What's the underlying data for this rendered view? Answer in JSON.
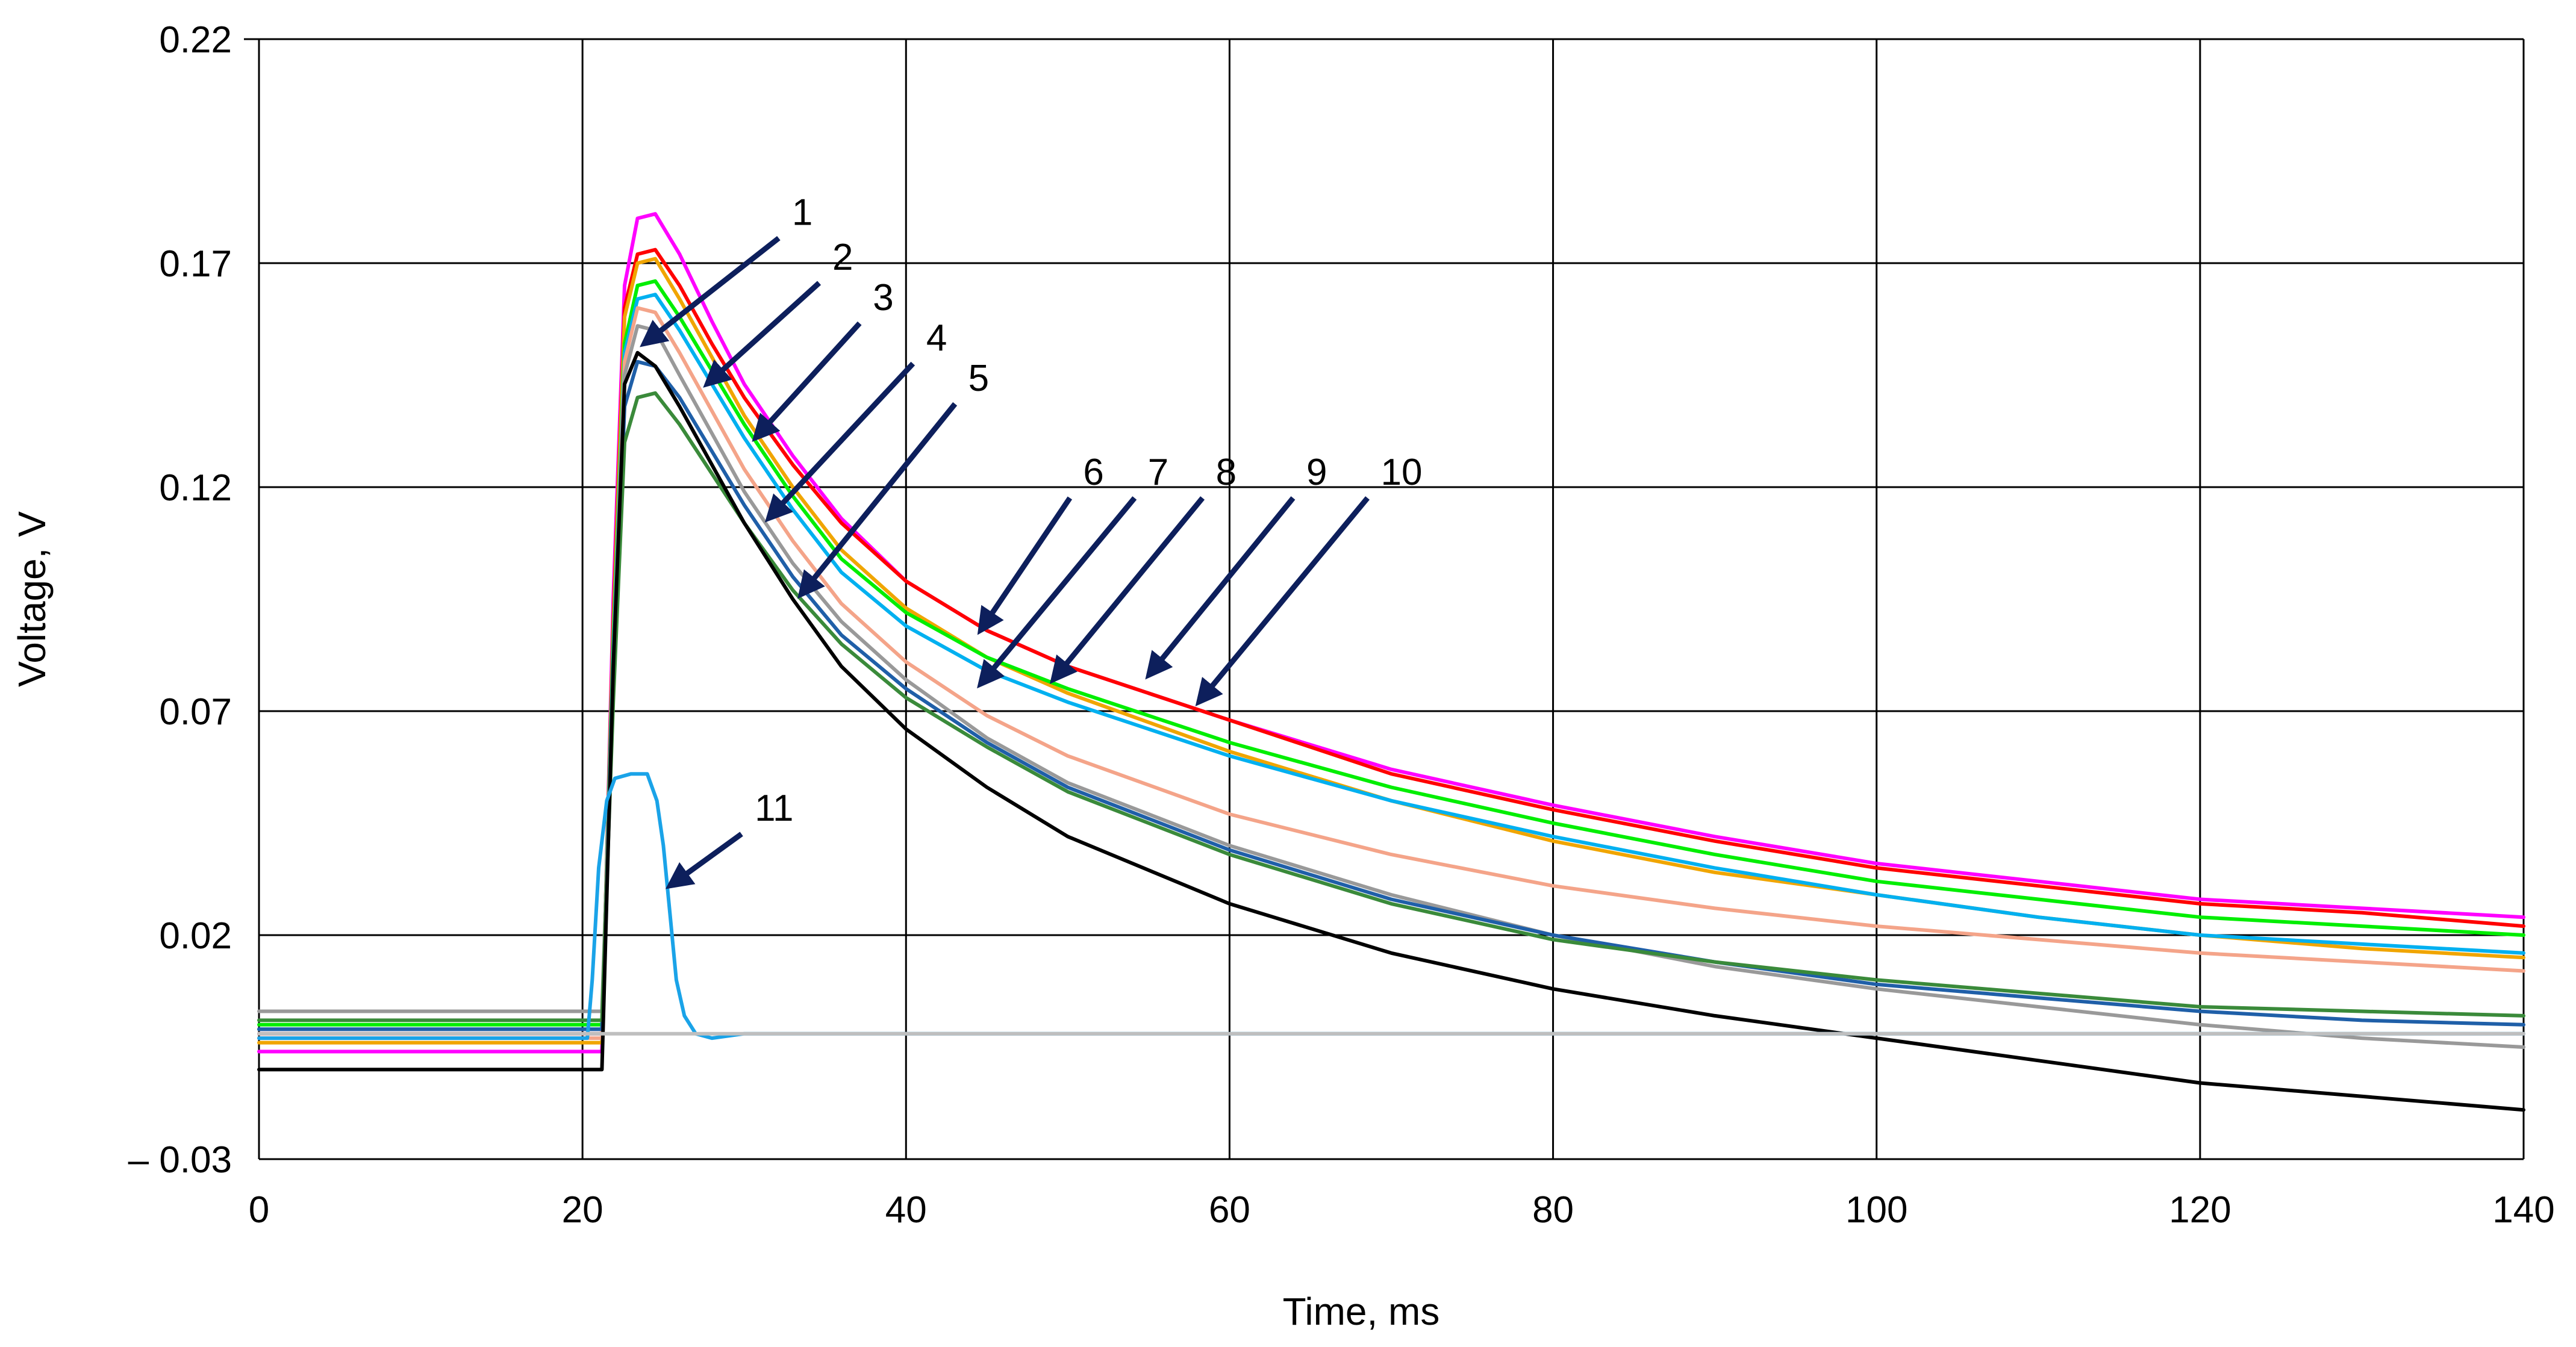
{
  "chart_data": {
    "type": "line",
    "title": "",
    "xlabel": "Time, ms",
    "ylabel": "Voltage, V",
    "xlim": [
      0,
      140
    ],
    "ylim": [
      -0.03,
      0.22
    ],
    "x_ticks": [
      0,
      20,
      40,
      60,
      80,
      100,
      120,
      140
    ],
    "x_tick_labels": [
      "0",
      "20",
      "40",
      "60",
      "80",
      "100",
      "120",
      "140"
    ],
    "y_ticks": [
      -0.03,
      0.02,
      0.07,
      0.12,
      0.17,
      0.22
    ],
    "y_tick_labels": [
      "– 0.03",
      "0.02",
      "0.07",
      "0.12",
      "0.17",
      "0.22"
    ],
    "grid": true,
    "series": [
      {
        "name": "magenta",
        "color": "#ff00ff",
        "x": [
          0,
          21.2,
          21.9,
          22.6,
          23.4,
          24.5,
          26,
          28,
          30,
          33,
          36,
          40,
          45,
          50,
          60,
          70,
          80,
          90,
          100,
          110,
          120,
          130,
          140
        ],
        "y": [
          -0.006,
          -0.006,
          0.095,
          0.165,
          0.18,
          0.181,
          0.172,
          0.157,
          0.143,
          0.127,
          0.113,
          0.099,
          0.088,
          0.08,
          0.068,
          0.057,
          0.049,
          0.042,
          0.036,
          0.032,
          0.028,
          0.026,
          0.024
        ]
      },
      {
        "name": "red",
        "color": "#ff0000",
        "x": [
          0,
          21.2,
          21.9,
          22.6,
          23.4,
          24.5,
          26,
          28,
          30,
          33,
          36,
          40,
          45,
          50,
          60,
          70,
          80,
          90,
          100,
          110,
          120,
          130,
          140
        ],
        "y": [
          -0.002,
          -0.002,
          0.09,
          0.16,
          0.172,
          0.173,
          0.165,
          0.152,
          0.14,
          0.125,
          0.112,
          0.099,
          0.088,
          0.08,
          0.068,
          0.056,
          0.048,
          0.041,
          0.035,
          0.031,
          0.027,
          0.025,
          0.022
        ]
      },
      {
        "name": "orange",
        "color": "#f0a500",
        "x": [
          0,
          21.2,
          21.9,
          22.6,
          23.4,
          24.5,
          26,
          28,
          30,
          33,
          36,
          40,
          45,
          50,
          60,
          70,
          80,
          90,
          100,
          110,
          120,
          130,
          140
        ],
        "y": [
          -0.004,
          -0.004,
          0.088,
          0.158,
          0.17,
          0.171,
          0.162,
          0.149,
          0.136,
          0.12,
          0.106,
          0.093,
          0.082,
          0.074,
          0.061,
          0.05,
          0.041,
          0.034,
          0.029,
          0.024,
          0.02,
          0.017,
          0.015
        ]
      },
      {
        "name": "green",
        "color": "#00ee00",
        "x": [
          0,
          21.2,
          21.9,
          22.6,
          23.4,
          24.5,
          26,
          28,
          30,
          33,
          36,
          40,
          45,
          50,
          60,
          70,
          80,
          90,
          100,
          110,
          120,
          130,
          140
        ],
        "y": [
          0.0,
          0.0,
          0.085,
          0.152,
          0.165,
          0.166,
          0.158,
          0.146,
          0.134,
          0.118,
          0.104,
          0.092,
          0.082,
          0.075,
          0.063,
          0.053,
          0.045,
          0.038,
          0.032,
          0.028,
          0.024,
          0.022,
          0.02
        ]
      },
      {
        "name": "cyan",
        "color": "#00b0f0",
        "x": [
          0,
          21.2,
          21.9,
          22.6,
          23.4,
          24.5,
          26,
          28,
          30,
          33,
          36,
          40,
          45,
          50,
          60,
          70,
          80,
          90,
          100,
          110,
          120,
          130,
          140
        ],
        "y": [
          -0.001,
          -0.001,
          0.083,
          0.15,
          0.162,
          0.163,
          0.155,
          0.143,
          0.131,
          0.115,
          0.101,
          0.089,
          0.079,
          0.072,
          0.06,
          0.05,
          0.042,
          0.035,
          0.029,
          0.024,
          0.02,
          0.018,
          0.016
        ]
      },
      {
        "name": "salmon",
        "color": "#f4a489",
        "x": [
          0,
          21.2,
          21.9,
          22.6,
          23.4,
          24.5,
          26,
          28,
          30,
          33,
          36,
          40,
          45,
          50,
          60,
          70,
          80,
          90,
          100,
          110,
          120,
          130,
          140
        ],
        "y": [
          -0.003,
          -0.003,
          0.08,
          0.148,
          0.16,
          0.159,
          0.15,
          0.137,
          0.124,
          0.108,
          0.094,
          0.081,
          0.069,
          0.06,
          0.047,
          0.038,
          0.031,
          0.026,
          0.022,
          0.019,
          0.016,
          0.014,
          0.012
        ]
      },
      {
        "name": "gray",
        "color": "#999999",
        "x": [
          0,
          21.2,
          21.9,
          22.6,
          23.4,
          24.5,
          26,
          28,
          30,
          33,
          36,
          40,
          45,
          50,
          60,
          70,
          80,
          90,
          100,
          110,
          120,
          130,
          140
        ],
        "y": [
          0.003,
          0.003,
          0.078,
          0.145,
          0.156,
          0.155,
          0.145,
          0.132,
          0.119,
          0.103,
          0.09,
          0.077,
          0.064,
          0.054,
          0.04,
          0.029,
          0.02,
          0.013,
          0.008,
          0.004,
          0.0,
          -0.003,
          -0.005
        ]
      },
      {
        "name": "dark blue",
        "color": "#1f5fa8",
        "x": [
          0,
          21.2,
          21.9,
          22.6,
          23.4,
          24.5,
          26,
          28,
          30,
          33,
          36,
          40,
          45,
          50,
          60,
          70,
          80,
          90,
          100,
          110,
          120,
          130,
          140
        ],
        "y": [
          -0.001,
          -0.001,
          0.075,
          0.138,
          0.148,
          0.147,
          0.14,
          0.128,
          0.116,
          0.1,
          0.087,
          0.075,
          0.063,
          0.053,
          0.039,
          0.028,
          0.02,
          0.014,
          0.009,
          0.006,
          0.003,
          0.001,
          0.0
        ]
      },
      {
        "name": "dark green",
        "color": "#3a8a3a",
        "x": [
          0,
          21.2,
          21.9,
          22.6,
          23.4,
          24.5,
          26,
          28,
          30,
          33,
          36,
          40,
          45,
          50,
          60,
          70,
          80,
          90,
          100,
          110,
          120,
          130,
          140
        ],
        "y": [
          0.001,
          0.001,
          0.072,
          0.13,
          0.14,
          0.141,
          0.134,
          0.123,
          0.112,
          0.097,
          0.085,
          0.073,
          0.062,
          0.052,
          0.038,
          0.027,
          0.019,
          0.014,
          0.01,
          0.007,
          0.004,
          0.003,
          0.002
        ]
      },
      {
        "name": "black",
        "color": "#000000",
        "x": [
          0,
          21.2,
          21.9,
          22.6,
          23.4,
          24.5,
          26,
          28,
          30,
          33,
          36,
          40,
          45,
          50,
          60,
          70,
          80,
          90,
          100,
          110,
          120,
          130,
          140
        ],
        "y": [
          -0.01,
          -0.01,
          0.08,
          0.143,
          0.15,
          0.147,
          0.138,
          0.125,
          0.112,
          0.095,
          0.08,
          0.066,
          0.053,
          0.042,
          0.027,
          0.016,
          0.008,
          0.002,
          -0.003,
          -0.008,
          -0.013,
          -0.016,
          -0.019
        ]
      },
      {
        "name": "light blue",
        "color": "#1aa3e8",
        "x": [
          0,
          20.3,
          20.6,
          21,
          21.5,
          22,
          23,
          24,
          24.6,
          25,
          25.4,
          25.8,
          26.3,
          27,
          28,
          30,
          35,
          40,
          50,
          60,
          80,
          100,
          120,
          140
        ],
        "y": [
          -0.003,
          -0.003,
          0.01,
          0.035,
          0.05,
          0.055,
          0.056,
          0.056,
          0.05,
          0.04,
          0.025,
          0.01,
          0.002,
          -0.002,
          -0.003,
          -0.002,
          -0.002,
          -0.002,
          -0.002,
          -0.002,
          -0.002,
          -0.002,
          -0.002,
          -0.002
        ]
      },
      {
        "name": "baseline",
        "color": "#bfbfbf",
        "x": [
          0,
          140
        ],
        "y": [
          -0.002,
          -0.002
        ]
      }
    ],
    "annotations": [
      {
        "label": "1",
        "text_x": 32.8,
        "text_y": 0.178,
        "tip_x": 23.8,
        "tip_y": 0.152
      },
      {
        "label": "2",
        "text_x": 35.3,
        "text_y": 0.168,
        "tip_x": 27.7,
        "tip_y": 0.143
      },
      {
        "label": "3",
        "text_x": 37.8,
        "text_y": 0.159,
        "tip_x": 30.7,
        "tip_y": 0.131
      },
      {
        "label": "4",
        "text_x": 41.1,
        "text_y": 0.15,
        "tip_x": 31.5,
        "tip_y": 0.113
      },
      {
        "label": "5",
        "text_x": 43.7,
        "text_y": 0.141,
        "tip_x": 33.5,
        "tip_y": 0.096
      },
      {
        "label": "6",
        "text_x": 50.8,
        "text_y": 0.12,
        "tip_x": 44.6,
        "tip_y": 0.088
      },
      {
        "label": "7",
        "text_x": 54.8,
        "text_y": 0.12,
        "tip_x": 44.6,
        "tip_y": 0.076
      },
      {
        "label": "8",
        "text_x": 59.0,
        "text_y": 0.12,
        "tip_x": 49.1,
        "tip_y": 0.077
      },
      {
        "label": "9",
        "text_x": 64.6,
        "text_y": 0.12,
        "tip_x": 55.0,
        "tip_y": 0.078
      },
      {
        "label": "10",
        "text_x": 69.2,
        "text_y": 0.12,
        "tip_x": 58.1,
        "tip_y": 0.072
      },
      {
        "label": "11",
        "text_x": 30.5,
        "text_y": 0.045,
        "tip_x": 25.4,
        "tip_y": 0.031
      }
    ],
    "arrow_color": "#0d1f5c"
  }
}
